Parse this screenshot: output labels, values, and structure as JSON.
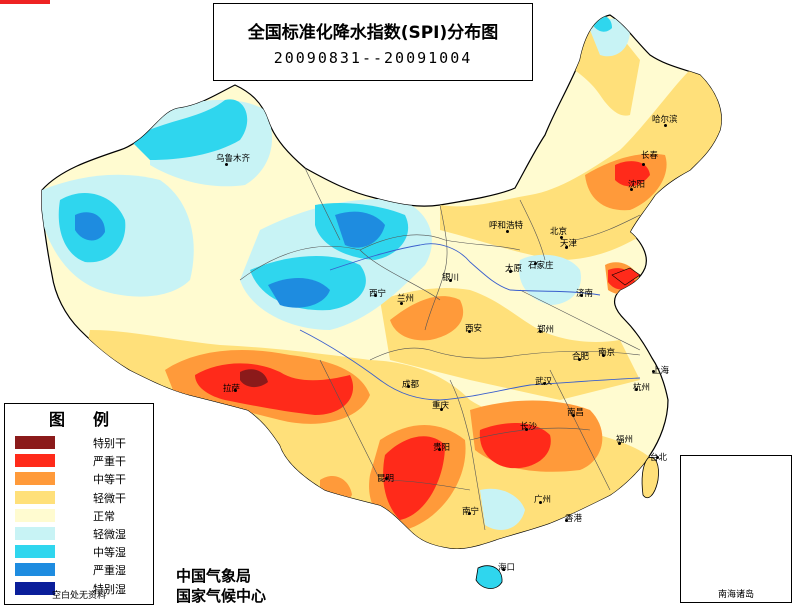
{
  "title": {
    "line1": "全国标准化降水指数(SPI)分布图",
    "line2": "20090831--20091004"
  },
  "legend": {
    "title": "图例",
    "items": [
      {
        "label": "特别干",
        "color": "#8b1a1a"
      },
      {
        "label": "严重干",
        "color": "#ff2a1a"
      },
      {
        "label": "中等干",
        "color": "#ff9a3a"
      },
      {
        "label": "轻微干",
        "color": "#ffe07a"
      },
      {
        "label": "正常",
        "color": "#fffbd0"
      },
      {
        "label": "轻微湿",
        "color": "#c8f3f5"
      },
      {
        "label": "中等湿",
        "color": "#2fd6ee"
      },
      {
        "label": "严重湿",
        "color": "#1e8ce0"
      },
      {
        "label": "特别湿",
        "color": "#0a1e9a"
      }
    ],
    "footnote": "空白处无资料"
  },
  "org": {
    "line1": "中国气象局",
    "line2": "国家气候中心"
  },
  "inset_label": "南海诸岛",
  "cities": [
    "乌鲁木齐",
    "哈尔滨",
    "长春",
    "沈阳",
    "呼和浩特",
    "北京",
    "天津",
    "太原",
    "石家庄",
    "济南",
    "银川",
    "西宁",
    "兰州",
    "西安",
    "郑州",
    "合肥",
    "南京",
    "上海",
    "杭州",
    "武汉",
    "成都",
    "重庆",
    "拉萨",
    "长沙",
    "南昌",
    "福州",
    "贵阳",
    "昆明",
    "南宁",
    "广州",
    "台北",
    "香港",
    "海口"
  ]
}
